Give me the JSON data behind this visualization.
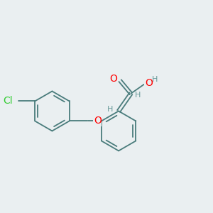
{
  "background_color": "#eaeff1",
  "bond_color": "#4a7c7c",
  "atom_colors": {
    "O": "#ff0000",
    "Cl": "#33cc33",
    "H": "#6a9a9a",
    "C": "#4a7c7c"
  },
  "font_size_atoms": 9,
  "figure_size": [
    3.0,
    3.0
  ],
  "dpi": 100
}
